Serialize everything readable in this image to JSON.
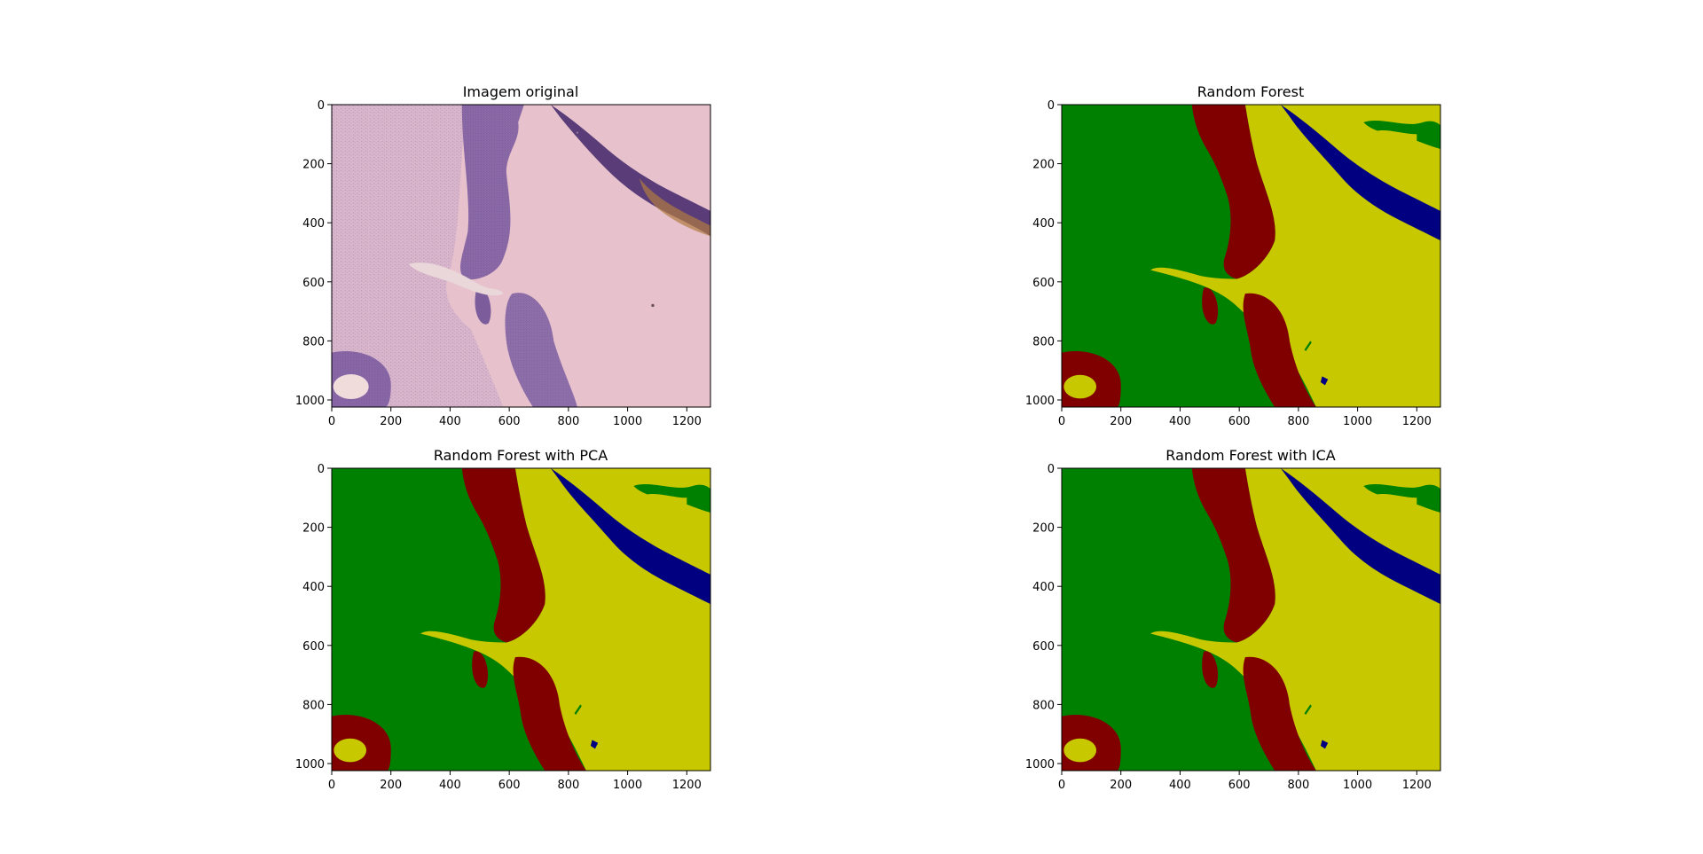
{
  "figure": {
    "panels": [
      {
        "title": "Imagem original",
        "kind": "photo"
      },
      {
        "title": "Random Forest",
        "kind": "segmentation"
      },
      {
        "title": "Random Forest with PCA",
        "kind": "segmentation"
      },
      {
        "title": "Random Forest with ICA",
        "kind": "segmentation"
      }
    ]
  },
  "chart_data": [
    {
      "type": "image",
      "title": "Imagem original",
      "xlim": [
        0,
        1280
      ],
      "ylim": [
        1024,
        0
      ],
      "x_ticks": [
        0,
        200,
        400,
        600,
        800,
        1000,
        1200
      ],
      "y_ticks": [
        0,
        200,
        400,
        600,
        800,
        1000
      ],
      "x_tick_labels": [
        "0",
        "200",
        "400",
        "600",
        "800",
        "1000",
        "1200"
      ],
      "y_tick_labels": [
        "0",
        "200",
        "400",
        "600",
        "800",
        "1000"
      ]
    },
    {
      "type": "heatmap",
      "title": "Random Forest",
      "xlim": [
        0,
        1280
      ],
      "ylim": [
        1024,
        0
      ],
      "x_ticks": [
        0,
        200,
        400,
        600,
        800,
        1000,
        1200
      ],
      "y_ticks": [
        0,
        200,
        400,
        600,
        800,
        1000
      ],
      "x_tick_labels": [
        "0",
        "200",
        "400",
        "600",
        "800",
        "1000",
        "1200"
      ],
      "y_tick_labels": [
        "0",
        "200",
        "400",
        "600",
        "800",
        "1000"
      ],
      "class_colors": [
        "#008000",
        "#800000",
        "#c8c800",
        "#000080"
      ]
    },
    {
      "type": "heatmap",
      "title": "Random Forest with PCA",
      "xlim": [
        0,
        1280
      ],
      "ylim": [
        1024,
        0
      ],
      "x_ticks": [
        0,
        200,
        400,
        600,
        800,
        1000,
        1200
      ],
      "y_ticks": [
        0,
        200,
        400,
        600,
        800,
        1000
      ],
      "x_tick_labels": [
        "0",
        "200",
        "400",
        "600",
        "800",
        "1000",
        "1200"
      ],
      "y_tick_labels": [
        "0",
        "200",
        "400",
        "600",
        "800",
        "1000"
      ],
      "class_colors": [
        "#008000",
        "#800000",
        "#c8c800",
        "#000080"
      ]
    },
    {
      "type": "heatmap",
      "title": "Random Forest with ICA",
      "xlim": [
        0,
        1280
      ],
      "ylim": [
        1024,
        0
      ],
      "x_ticks": [
        0,
        200,
        400,
        600,
        800,
        1000,
        1200
      ],
      "y_ticks": [
        0,
        200,
        400,
        600,
        800,
        1000
      ],
      "x_tick_labels": [
        "0",
        "200",
        "400",
        "600",
        "800",
        "1000",
        "1200"
      ],
      "y_tick_labels": [
        "0",
        "200",
        "400",
        "600",
        "800",
        "1000"
      ],
      "class_colors": [
        "#008000",
        "#800000",
        "#c8c800",
        "#000080"
      ]
    }
  ]
}
